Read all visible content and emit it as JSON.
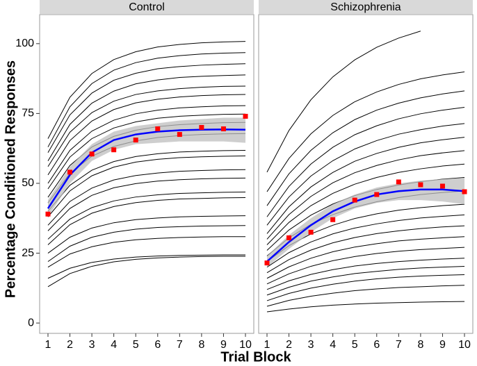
{
  "chart_data": [
    {
      "type": "line",
      "title": "Control",
      "ylabel": "Percentage Conditioned Responses",
      "xlabel": "Trial Block",
      "x": [
        1,
        2,
        3,
        4,
        5,
        6,
        7,
        8,
        9,
        10
      ],
      "xlim": [
        0.62,
        10.38
      ],
      "ylim": [
        -3.7,
        110.4
      ],
      "xticks": [
        1,
        2,
        3,
        4,
        5,
        6,
        7,
        8,
        9,
        10
      ],
      "yticks": [
        0,
        25,
        50,
        75,
        100
      ],
      "line_color": "#000000",
      "series": [
        {
          "values": [
            13,
            17.7,
            20.3,
            21.9,
            22.8,
            23.3,
            23.6,
            23.8,
            23.9,
            23.9
          ]
        },
        {
          "values": [
            16,
            19.6,
            21.7,
            22.9,
            23.6,
            24.0,
            24.2,
            24.3,
            24.4,
            24.4
          ]
        },
        {
          "values": [
            20,
            24.7,
            27.3,
            28.9,
            29.8,
            30.3,
            30.6,
            30.8,
            30.9,
            30.9
          ]
        },
        {
          "values": [
            22,
            27.5,
            30.7,
            32.5,
            33.6,
            34.2,
            34.5,
            34.7,
            34.8,
            34.9
          ]
        },
        {
          "values": [
            25,
            30.7,
            34.0,
            35.9,
            37.0,
            37.6,
            38.0,
            38.2,
            38.3,
            38.4
          ]
        },
        {
          "values": [
            28,
            35.2,
            39.3,
            41.7,
            43.1,
            43.9,
            44.4,
            44.6,
            44.8,
            44.9
          ]
        },
        {
          "values": [
            30,
            37.2,
            41.3,
            43.7,
            45.1,
            45.9,
            46.4,
            46.6,
            46.8,
            46.9
          ]
        },
        {
          "values": [
            33,
            41.0,
            45.7,
            48.4,
            49.9,
            50.8,
            51.3,
            51.6,
            51.8,
            51.9
          ]
        },
        {
          "values": [
            35,
            43.5,
            48.3,
            51.2,
            52.8,
            53.7,
            54.3,
            54.6,
            54.8,
            54.9
          ]
        },
        {
          "values": [
            38,
            47.3,
            52.7,
            55.8,
            57.6,
            58.6,
            59.2,
            59.5,
            59.7,
            59.8
          ]
        },
        {
          "values": [
            40,
            49.3,
            54.7,
            57.8,
            59.6,
            60.6,
            61.2,
            61.5,
            61.7,
            61.8
          ]
        },
        {
          "values": [
            43,
            53.6,
            59.7,
            63.2,
            65.2,
            66.4,
            67.1,
            67.5,
            67.7,
            67.8
          ]
        },
        {
          "values": [
            45,
            56.4,
            63.0,
            66.8,
            69.0,
            70.3,
            71.0,
            71.4,
            71.7,
            71.8
          ]
        },
        {
          "values": [
            48,
            59.4,
            66.0,
            69.8,
            72.0,
            73.3,
            74.0,
            74.4,
            74.7,
            74.8
          ]
        },
        {
          "values": [
            50,
            61.8,
            68.7,
            72.6,
            74.9,
            76.2,
            77.0,
            77.4,
            77.7,
            77.8
          ]
        },
        {
          "values": [
            53,
            65.3,
            72.3,
            76.4,
            78.8,
            80.1,
            80.9,
            81.4,
            81.7,
            81.8
          ]
        },
        {
          "values": [
            56,
            68.3,
            75.3,
            79.4,
            81.8,
            83.1,
            83.9,
            84.4,
            84.7,
            84.8
          ]
        },
        {
          "values": [
            58,
            71.1,
            78.7,
            83.0,
            85.6,
            87.0,
            87.9,
            88.3,
            88.6,
            88.8
          ]
        },
        {
          "values": [
            61,
            74.5,
            82.3,
            86.9,
            89.4,
            91.0,
            91.8,
            92.3,
            92.6,
            92.8
          ]
        },
        {
          "values": [
            63,
            77.4,
            85.7,
            90.5,
            93.2,
            94.8,
            95.7,
            96.3,
            96.6,
            96.8
          ]
        },
        {
          "values": [
            66,
            80.8,
            89.3,
            94.3,
            97.1,
            98.8,
            99.7,
            100.3,
            100.6,
            100.8
          ]
        }
      ],
      "fit": {
        "color": "#0000ff",
        "band_color": "#bdbdbd",
        "values": [
          41,
          53,
          61,
          65.5,
          67.5,
          68.5,
          69,
          69.2,
          69.3,
          69.2
        ],
        "lower": [
          38,
          50,
          58,
          62,
          64,
          64.5,
          65,
          65,
          65,
          64.5
        ],
        "upper": [
          44,
          56,
          64,
          68.5,
          70.5,
          71.5,
          72.5,
          73,
          73.5,
          73.5
        ]
      },
      "points": {
        "color": "#ff0000",
        "values": [
          39,
          54,
          60.5,
          62,
          65.5,
          69.5,
          67.5,
          70,
          69.5,
          74
        ]
      }
    },
    {
      "type": "line",
      "title": "Schizophrenia",
      "x": [
        1,
        2,
        3,
        4,
        5,
        6,
        7,
        8,
        9,
        10
      ],
      "xlim": [
        0.62,
        10.38
      ],
      "ylim": [
        -3.7,
        110.4
      ],
      "xticks": [
        1,
        2,
        3,
        4,
        5,
        6,
        7,
        8,
        9,
        10
      ],
      "line_color": "#000000",
      "series": [
        {
          "values": [
            4,
            5.0,
            5.8,
            6.4,
            6.8,
            7.1,
            7.3,
            7.5,
            7.6,
            7.7
          ]
        },
        {
          "values": [
            6,
            8.1,
            9.6,
            10.7,
            11.6,
            12.2,
            12.7,
            13.0,
            13.3,
            13.5
          ]
        },
        {
          "values": [
            8,
            10.6,
            12.5,
            13.9,
            15.0,
            15.8,
            16.4,
            16.8,
            17.1,
            17.3
          ]
        },
        {
          "values": [
            10,
            12.8,
            15.0,
            16.5,
            17.7,
            18.5,
            19.2,
            19.7,
            20.0,
            20.3
          ]
        },
        {
          "values": [
            12,
            15.1,
            17.4,
            19.1,
            20.4,
            21.3,
            22.0,
            22.5,
            22.9,
            23.2
          ]
        },
        {
          "values": [
            14,
            17.6,
            20.3,
            22.3,
            23.8,
            24.9,
            25.7,
            26.3,
            26.7,
            27.1
          ]
        },
        {
          "values": [
            16,
            20.1,
            23.2,
            25.5,
            27.2,
            28.4,
            29.4,
            30.0,
            30.5,
            30.9
          ]
        },
        {
          "values": [
            18,
            22.7,
            26.1,
            28.7,
            30.6,
            32.0,
            33.0,
            33.8,
            34.4,
            34.8
          ]
        },
        {
          "values": [
            20,
            25.2,
            29.0,
            31.9,
            34.0,
            35.5,
            36.7,
            37.6,
            38.2,
            38.7
          ]
        },
        {
          "values": [
            22,
            27.7,
            31.9,
            35.0,
            37.4,
            39.1,
            40.4,
            41.3,
            42.0,
            42.5
          ]
        },
        {
          "values": [
            24,
            30.5,
            35.3,
            38.8,
            41.5,
            43.4,
            44.9,
            46.0,
            46.7,
            47.3
          ]
        },
        {
          "values": [
            26,
            33.3,
            38.6,
            42.6,
            45.6,
            47.8,
            49.4,
            50.6,
            51.5,
            52.1
          ]
        },
        {
          "values": [
            28,
            36.0,
            42.0,
            46.4,
            49.7,
            52.1,
            53.9,
            55.2,
            56.2,
            56.9
          ]
        },
        {
          "values": [
            30,
            38.8,
            45.3,
            50.2,
            53.8,
            56.4,
            58.4,
            59.9,
            60.9,
            61.7
          ]
        },
        {
          "values": [
            32,
            41.6,
            48.7,
            53.9,
            57.9,
            60.7,
            62.9,
            64.5,
            65.6,
            66.5
          ]
        },
        {
          "values": [
            35,
            45.1,
            52.6,
            58.1,
            62.3,
            65.3,
            67.6,
            69.2,
            70.5,
            71.4
          ]
        },
        {
          "values": [
            38,
            48.9,
            56.9,
            62.9,
            67.4,
            70.6,
            73.1,
            74.9,
            76.2,
            77.2
          ]
        },
        {
          "values": [
            42,
            53.4,
            61.8,
            68.1,
            72.8,
            76.2,
            78.7,
            80.6,
            82.0,
            83.1
          ]
        },
        {
          "values": [
            47,
            58.9,
            67.7,
            74.3,
            79.2,
            82.7,
            85.4,
            87.4,
            88.8,
            89.9
          ]
        },
        {
          "values": [
            54,
            68.9,
            79.9,
            88.1,
            94.2,
            98.7,
            102.0,
            104.5,
            null,
            null
          ]
        }
      ],
      "fit": {
        "color": "#0000ff",
        "band_color": "#bdbdbd",
        "values": [
          22,
          29,
          35,
          40,
          43.5,
          46,
          47.2,
          47.8,
          47.8,
          47.2
        ],
        "lower": [
          20,
          26.5,
          32.5,
          37.5,
          41,
          43,
          44,
          44,
          43.5,
          42.5
        ],
        "upper": [
          24,
          31.5,
          37.5,
          42.5,
          46,
          48.5,
          50,
          51,
          51.5,
          52
        ]
      },
      "points": {
        "color": "#ff0000",
        "values": [
          21.5,
          30.5,
          32.5,
          37,
          44,
          46,
          50.5,
          49.5,
          49,
          47
        ]
      }
    }
  ]
}
